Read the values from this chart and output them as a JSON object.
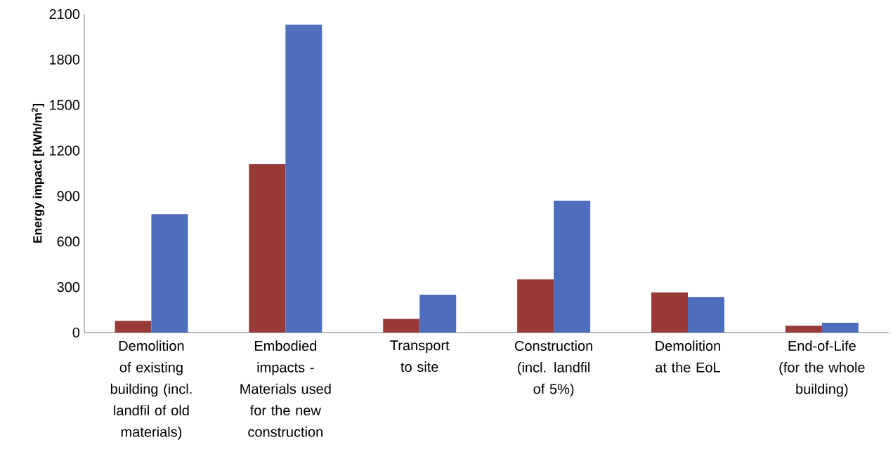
{
  "chart_data": {
    "type": "bar",
    "ylabel": "Energy impact [kWh/m$^{2}$]",
    "categories": [
      "Demolition of existing building (incl. landfil of old materials)",
      "Embodied impacts - Materials used for the new construction",
      "Transport to site",
      "Construction (incl. landfil of 5%)",
      "Demolition at the EoL",
      "End-of-Life (for the whole building)"
    ],
    "series": [
      {
        "color": "#983a37",
        "values": [
          78,
          1110,
          90,
          350,
          265,
          45
        ]
      },
      {
        "color": "#4e6dbd",
        "values": [
          780,
          2030,
          250,
          870,
          235,
          65
        ]
      }
    ],
    "ylim": [
      0,
      2100
    ],
    "yticks": [
      0,
      300,
      600,
      900,
      1200,
      1500,
      1800,
      2100
    ]
  }
}
